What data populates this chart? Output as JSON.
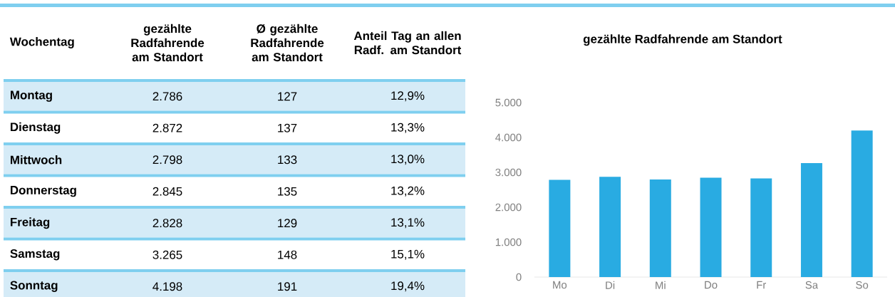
{
  "chart_data": [
    {
      "type": "other",
      "xlabel": "Wochentag",
      "categories": [
        "Montag",
        "Dienstag",
        "Mittwoch",
        "Donnerstag",
        "Freitag",
        "Samstag",
        "Sonntag"
      ],
      "annotations": [
        "gezählte Radfahrende am Standort",
        "Ø gezählte Radfahrende am Standort",
        "Anteil Tag an allen Radf. am Standort",
        "2.786",
        "127",
        "12,9%",
        "2.872",
        "137",
        "13,3%",
        "2.798",
        "133",
        "13,0%",
        "2.845",
        "135",
        "13,2%",
        "2.828",
        "129",
        "13,1%",
        "3.265",
        "148",
        "15,1%",
        "4.198",
        "191",
        "19,4%"
      ]
    },
    {
      "type": "bar",
      "title": "gezählte Radfahrende am Standort",
      "categories": [
        "Mo",
        "Di",
        "Mi",
        "Do",
        "Fr",
        "Sa",
        "So"
      ],
      "values": [
        2786,
        2872,
        2798,
        2845,
        2828,
        3265,
        4198
      ],
      "color": "#29abe2",
      "ylim": [
        0,
        5000
      ],
      "yticks": [
        0,
        {
          "value": 1000,
          "label": "1.000"
        },
        {
          "value": 2000,
          "label": "2.000"
        },
        {
          "value": 3000,
          "label": "3.000"
        },
        {
          "value": 4000,
          "label": "4.000"
        },
        {
          "value": 5000,
          "label": "5.000"
        }
      ]
    }
  ]
}
